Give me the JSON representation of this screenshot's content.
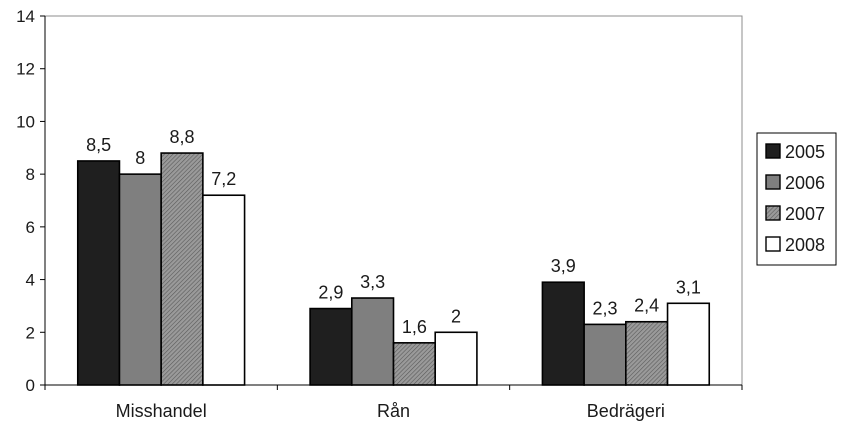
{
  "chart_data": {
    "type": "bar",
    "categories": [
      "Misshandel",
      "Rån",
      "Bedrägeri"
    ],
    "series": [
      {
        "name": "2005",
        "values": [
          8.5,
          2.9,
          3.9
        ],
        "labels": [
          "8,5",
          "2,9",
          "3,9"
        ],
        "color": "#1f1f1f",
        "pattern": "solid"
      },
      {
        "name": "2006",
        "values": [
          8.0,
          3.3,
          2.3
        ],
        "labels": [
          "8",
          "3,3",
          "2,3"
        ],
        "color": "#7f7f7f",
        "pattern": "solid"
      },
      {
        "name": "2007",
        "values": [
          8.8,
          1.6,
          2.4
        ],
        "labels": [
          "8,8",
          "1,6",
          "2,4"
        ],
        "color": "#8c8c8c",
        "pattern": "hatched"
      },
      {
        "name": "2008",
        "values": [
          7.2,
          2.0,
          3.1
        ],
        "labels": [
          "7,2",
          "2",
          "3,1"
        ],
        "color": "#ffffff",
        "pattern": "solid"
      }
    ],
    "y_ticks": [
      "0",
      "2",
      "4",
      "6",
      "8",
      "10",
      "12",
      "14"
    ],
    "ylim": [
      0,
      14
    ],
    "legend_position": "right",
    "grid": false
  }
}
